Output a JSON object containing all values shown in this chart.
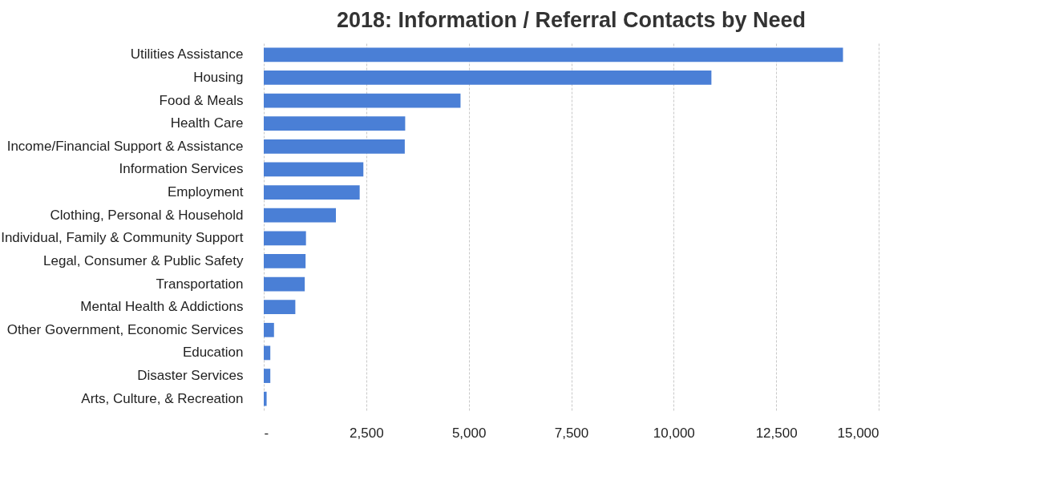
{
  "chart_data": {
    "type": "bar",
    "orientation": "horizontal",
    "title": "2018: Information / Referral Contacts by Need",
    "categories": [
      "Utilities Assistance",
      "Housing",
      "Food & Meals",
      "Health Care",
      "Income/Financial Support & Assistance",
      "Information Services",
      "Employment",
      "Clothing, Personal & Household",
      "Individual, Family & Community Support",
      "Legal, Consumer & Public Safety",
      "Transportation",
      "Mental Health & Addictions",
      "Other Government, Economic Services",
      "Education",
      "Disaster Services",
      "Arts, Culture, & Recreation"
    ],
    "values": [
      14130,
      10920,
      4800,
      3450,
      3440,
      2430,
      2340,
      1760,
      1030,
      1020,
      1000,
      770,
      250,
      160,
      160,
      70
    ],
    "color": "#4a7fd6",
    "xlim": [
      0,
      15000
    ],
    "xticks": [
      {
        "value": 0,
        "label": "-"
      },
      {
        "value": 2500,
        "label": "2,500"
      },
      {
        "value": 5000,
        "label": "5,000"
      },
      {
        "value": 7500,
        "label": "7,500"
      },
      {
        "value": 10000,
        "label": "10,000"
      },
      {
        "value": 12500,
        "label": "12,500"
      },
      {
        "value": 15000,
        "label": "15,000"
      }
    ],
    "grid": "x"
  }
}
